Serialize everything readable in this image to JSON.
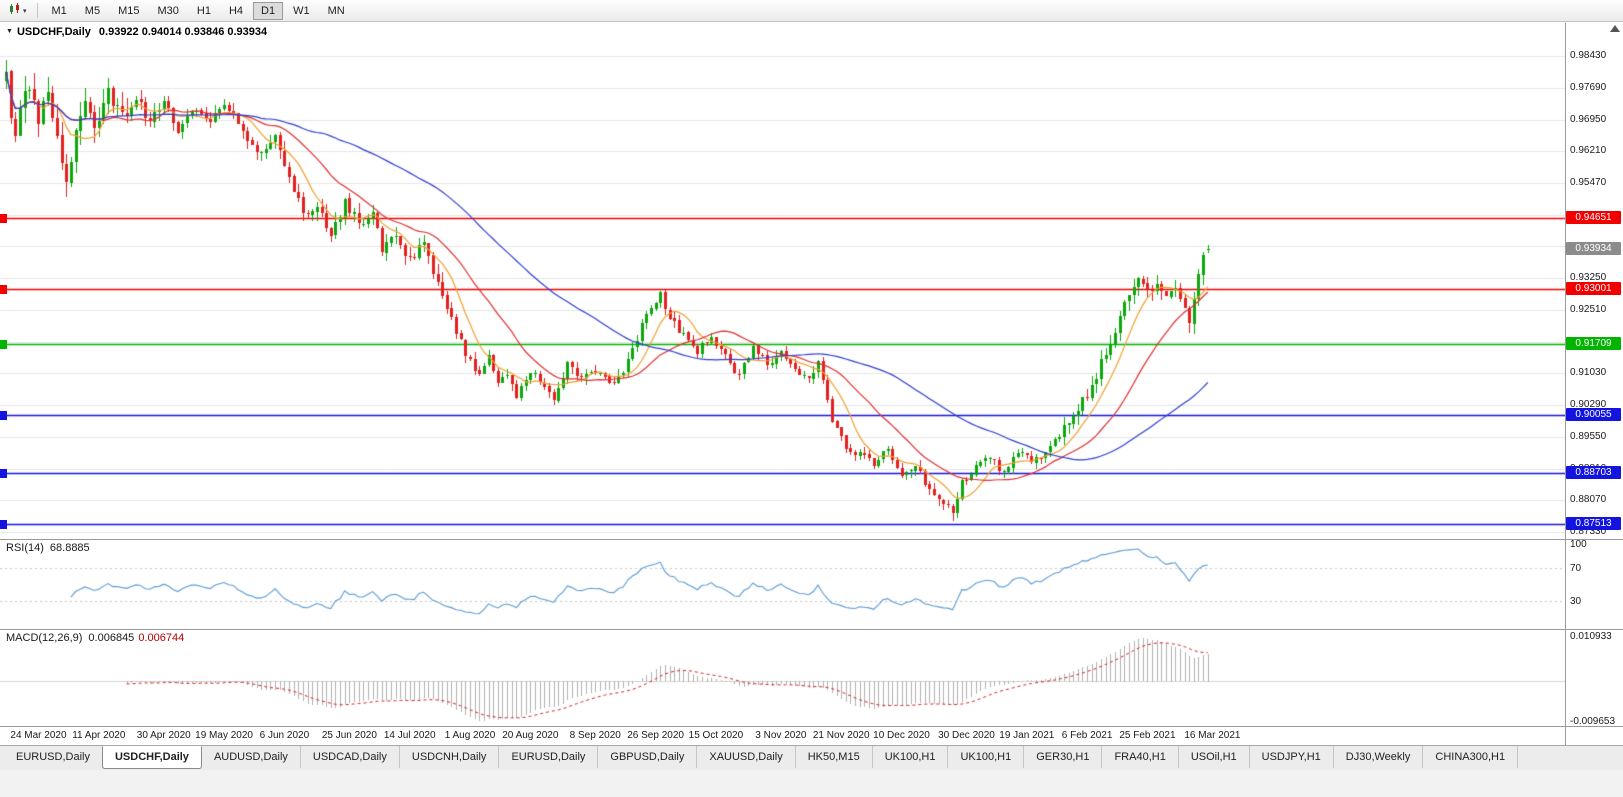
{
  "toolbar": {
    "timeframes": [
      "M1",
      "M5",
      "M15",
      "M30",
      "H1",
      "H4",
      "D1",
      "W1",
      "MN"
    ],
    "active_timeframe": "D1"
  },
  "chart": {
    "symbol_period": "USDCHF,Daily",
    "ohlc_text": "0.93922 0.94014 0.93846 0.93934",
    "last_candle": {
      "o": 0.93922,
      "h": 0.94014,
      "l": 0.93846,
      "c": 0.93934
    },
    "current_price": 0.93934,
    "current_price_label": "0.93934",
    "price_max": 0.992,
    "price_min": 0.8717,
    "candle_count": 260,
    "ma_periods": [
      8,
      21,
      55
    ],
    "grid_values": [
      0.9843,
      0.9769,
      0.9695,
      0.9621,
      0.9547,
      0.9473,
      0.9399,
      0.9325,
      0.9251,
      0.9177,
      0.9103,
      0.9029,
      0.8955,
      0.8881,
      0.8807,
      0.8733
    ],
    "label_values": [
      0.9843,
      0.9769,
      0.9695,
      0.9621,
      0.9547,
      0.9325,
      0.9251,
      0.9103,
      0.9029,
      0.8955,
      0.8881,
      0.8807,
      0.8733
    ],
    "hlines": [
      {
        "price": 0.94651,
        "label": "0.94651",
        "color": "#f20000"
      },
      {
        "price": 0.93001,
        "label": "0.93001",
        "color": "#f20000"
      },
      {
        "price": 0.91709,
        "label": "0.91709",
        "color": "#00b400"
      },
      {
        "price": 0.90055,
        "label": "0.90055",
        "color": "#1414e0"
      },
      {
        "price": 0.88703,
        "label": "0.88703",
        "color": "#1414e0"
      },
      {
        "price": 0.87513,
        "label": "0.87513",
        "color": "#1414e0"
      }
    ],
    "anchors": [
      [
        0,
        0.98
      ],
      [
        1,
        0.969
      ],
      [
        2,
        0.966
      ],
      [
        3,
        0.973
      ],
      [
        5,
        0.9775
      ],
      [
        7,
        0.969
      ],
      [
        9,
        0.976
      ],
      [
        11,
        0.964
      ],
      [
        13,
        0.9545
      ],
      [
        15,
        0.968
      ],
      [
        17,
        0.9735
      ],
      [
        19,
        0.968
      ],
      [
        22,
        0.976
      ],
      [
        25,
        0.9705
      ],
      [
        28,
        0.9745
      ],
      [
        31,
        0.969
      ],
      [
        34,
        0.9735
      ],
      [
        37,
        0.9675
      ],
      [
        40,
        0.972
      ],
      [
        44,
        0.9695
      ],
      [
        48,
        0.9725
      ],
      [
        52,
        0.9655
      ],
      [
        55,
        0.9615
      ],
      [
        58,
        0.965
      ],
      [
        61,
        0.956
      ],
      [
        64,
        0.948
      ],
      [
        67,
        0.949
      ],
      [
        70,
        0.943
      ],
      [
        73,
        0.95
      ],
      [
        76,
        0.9455
      ],
      [
        79,
        0.9475
      ],
      [
        81,
        0.9395
      ],
      [
        84,
        0.942
      ],
      [
        87,
        0.937
      ],
      [
        90,
        0.9405
      ],
      [
        93,
        0.931
      ],
      [
        96,
        0.923
      ],
      [
        99,
        0.915
      ],
      [
        102,
        0.91
      ],
      [
        104,
        0.9145
      ],
      [
        106,
        0.908
      ],
      [
        108,
        0.9095
      ],
      [
        110,
        0.905
      ],
      [
        113,
        0.911
      ],
      [
        116,
        0.907
      ],
      [
        118,
        0.9035
      ],
      [
        121,
        0.913
      ],
      [
        124,
        0.909
      ],
      [
        127,
        0.911
      ],
      [
        130,
        0.9075
      ],
      [
        133,
        0.9105
      ],
      [
        135,
        0.9155
      ],
      [
        138,
        0.9245
      ],
      [
        141,
        0.9285
      ],
      [
        143,
        0.9235
      ],
      [
        146,
        0.919
      ],
      [
        149,
        0.9155
      ],
      [
        152,
        0.919
      ],
      [
        155,
        0.914
      ],
      [
        158,
        0.9095
      ],
      [
        161,
        0.917
      ],
      [
        164,
        0.9125
      ],
      [
        167,
        0.9155
      ],
      [
        170,
        0.911
      ],
      [
        173,
        0.9095
      ],
      [
        175,
        0.9125
      ],
      [
        178,
        0.899
      ],
      [
        181,
        0.893
      ],
      [
        184,
        0.8912
      ],
      [
        187,
        0.8892
      ],
      [
        190,
        0.8925
      ],
      [
        193,
        0.8862
      ],
      [
        196,
        0.8885
      ],
      [
        199,
        0.8835
      ],
      [
        202,
        0.8805
      ],
      [
        204,
        0.8772
      ],
      [
        206,
        0.885
      ],
      [
        209,
        0.8882
      ],
      [
        212,
        0.8905
      ],
      [
        215,
        0.8872
      ],
      [
        218,
        0.8925
      ],
      [
        221,
        0.8895
      ],
      [
        224,
        0.8915
      ],
      [
        227,
        0.8955
      ],
      [
        230,
        0.9005
      ],
      [
        233,
        0.9055
      ],
      [
        236,
        0.9125
      ],
      [
        239,
        0.9205
      ],
      [
        242,
        0.9285
      ],
      [
        244,
        0.9315
      ],
      [
        246,
        0.929
      ],
      [
        248,
        0.9305
      ],
      [
        250,
        0.9285
      ],
      [
        252,
        0.9302
      ],
      [
        254,
        0.9245
      ],
      [
        255,
        0.9225
      ],
      [
        256,
        0.9268
      ],
      [
        257,
        0.933
      ],
      [
        258,
        0.9382
      ],
      [
        259,
        0.93934
      ]
    ],
    "colors": {
      "up": "#0da60d",
      "down": "#e32020",
      "ma_fast": "#f0a030",
      "ma_mid": "#e03030",
      "ma_slow": "#2f3fd0",
      "grid": "#e6e6e6",
      "macd_hist": "#b0b0b0",
      "macd_signal": "#d42020",
      "current_label_bg": "#8c8c8c"
    }
  },
  "rsi": {
    "name": "RSI(14)",
    "value": "68.8885",
    "period": 14,
    "color": "#5b9bd5",
    "levels": [
      {
        "v": 100,
        "label": "100",
        "line": false
      },
      {
        "v": 70,
        "label": "70",
        "line": true
      },
      {
        "v": 30,
        "label": "30",
        "line": true
      }
    ]
  },
  "macd": {
    "name": "MACD(12,26,9)",
    "main_value": "0.006845",
    "signal_value": "0.006744",
    "fast": 12,
    "slow": 26,
    "signal_period": 9,
    "axis_max": 0.010933,
    "axis_min": -0.009653,
    "axis_max_label": "0.010933",
    "axis_min_label": "-0.009653"
  },
  "date_axis": {
    "labels": [
      "24 Mar 2020",
      "11 Apr 2020",
      "30 Apr 2020",
      "19 May 2020",
      "6 Jun 2020",
      "25 Jun 2020",
      "14 Jul 2020",
      "1 Aug 2020",
      "20 Aug 2020",
      "8 Sep 2020",
      "26 Sep 2020",
      "15 Oct 2020",
      "3 Nov 2020",
      "21 Nov 2020",
      "10 Dec 2020",
      "30 Dec 2020",
      "19 Jan 2021",
      "6 Feb 2021",
      "25 Feb 2021",
      "16 Mar 2021"
    ]
  },
  "tabs": {
    "active_index": 1,
    "items": [
      "EURUSD,Daily",
      "USDCHF,Daily",
      "AUDUSD,Daily",
      "USDCAD,Daily",
      "USDCNH,Daily",
      "EURUSD,Daily",
      "GBPUSD,Daily",
      "XAUUSD,Daily",
      "HK50,M15",
      "UK100,H1",
      "UK100,H1",
      "GER30,H1",
      "FRA40,H1",
      "USOil,H1",
      "USDJPY,H1",
      "DJ30,Weekly",
      "CHINA300,H1"
    ]
  }
}
